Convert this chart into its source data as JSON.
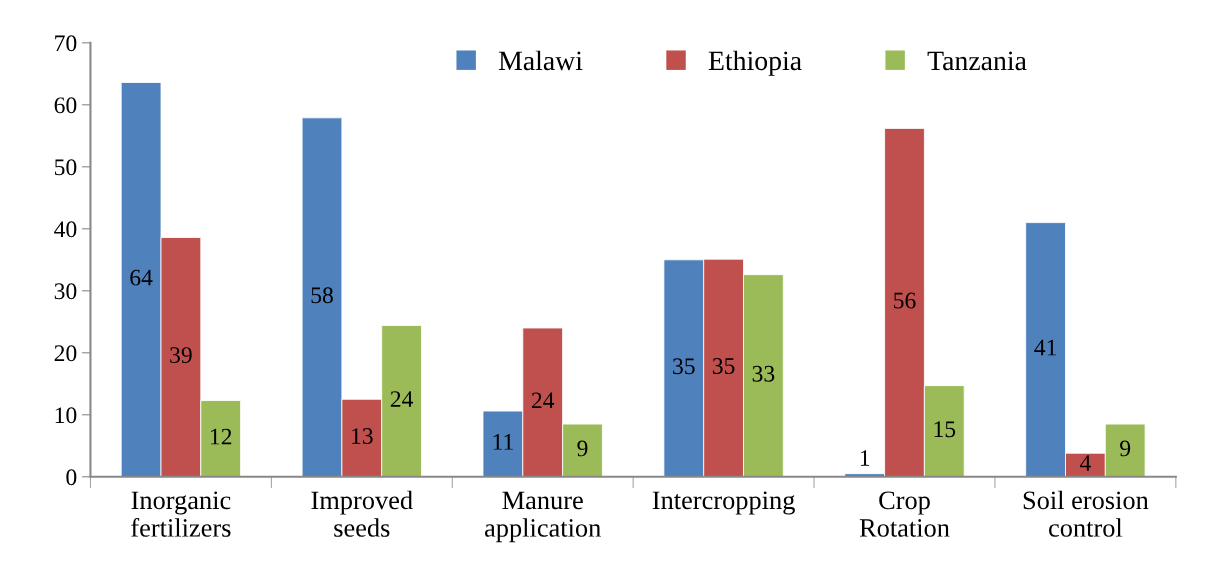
{
  "chart_data": {
    "type": "bar",
    "categories": [
      "Inorganic\nfertilizers",
      "Improved\nseeds",
      "Manure\napplication",
      "Intercropping",
      "Crop\nRotation",
      "Soil erosion\ncontrol"
    ],
    "series": [
      {
        "name": "Malawi",
        "color": "#4f81bd",
        "values": [
          63.6,
          57.9,
          10.6,
          35.0,
          0.5,
          41.0
        ],
        "value_labels": [
          "64",
          "58",
          "11",
          "35",
          "1",
          "41"
        ]
      },
      {
        "name": "Ethiopia",
        "color": "#c0504d",
        "values": [
          38.6,
          12.5,
          24.0,
          35.1,
          56.2,
          3.8
        ],
        "value_labels": [
          "39",
          "13",
          "24",
          "35",
          "56",
          "4"
        ]
      },
      {
        "name": "Tanzania",
        "color": "#9bbb59",
        "values": [
          12.3,
          24.4,
          8.5,
          32.6,
          14.7,
          8.5
        ],
        "value_labels": [
          "12",
          "24",
          "9",
          "33",
          "15",
          "9"
        ]
      }
    ],
    "ylim": [
      0,
      70
    ],
    "yticks": [
      0,
      10,
      20,
      30,
      40,
      50,
      60,
      70
    ],
    "grid": false,
    "legend": "top"
  }
}
